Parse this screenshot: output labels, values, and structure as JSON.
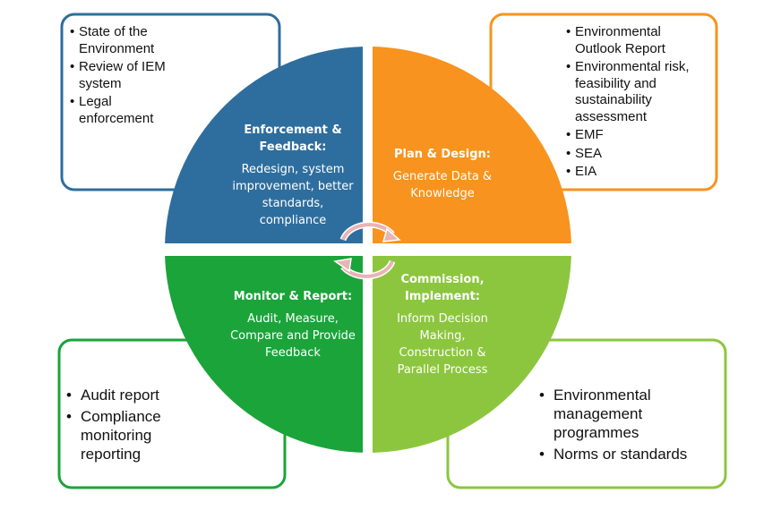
{
  "quadrants": [
    {
      "title": "Enforcement & Feedback:",
      "body": "Redesign, system improvement, better standards, compliance"
    },
    {
      "title": "Plan & Design:",
      "body": "Generate Data & Knowledge"
    },
    {
      "title": "Monitor & Report:",
      "body": "Audit, Measure, Compare and Provide Feedback"
    },
    {
      "title": "Commission, Implement:",
      "body": "Inform Decision Making, Construction & Parallel Process"
    }
  ],
  "boxes": [
    {
      "items": [
        "State of the Environment",
        "Review of IEM system",
        "Legal enforcement"
      ]
    },
    {
      "items": [
        "Environmental Outlook Report",
        "Environmental risk, feasibility and sustainability assessment",
        "EMF",
        "SEA",
        "EIA"
      ]
    },
    {
      "items": [
        "Audit report",
        "Compliance monitoring reporting"
      ]
    },
    {
      "items": [
        "Environmental management programmes",
        "Norms or standards"
      ]
    }
  ]
}
